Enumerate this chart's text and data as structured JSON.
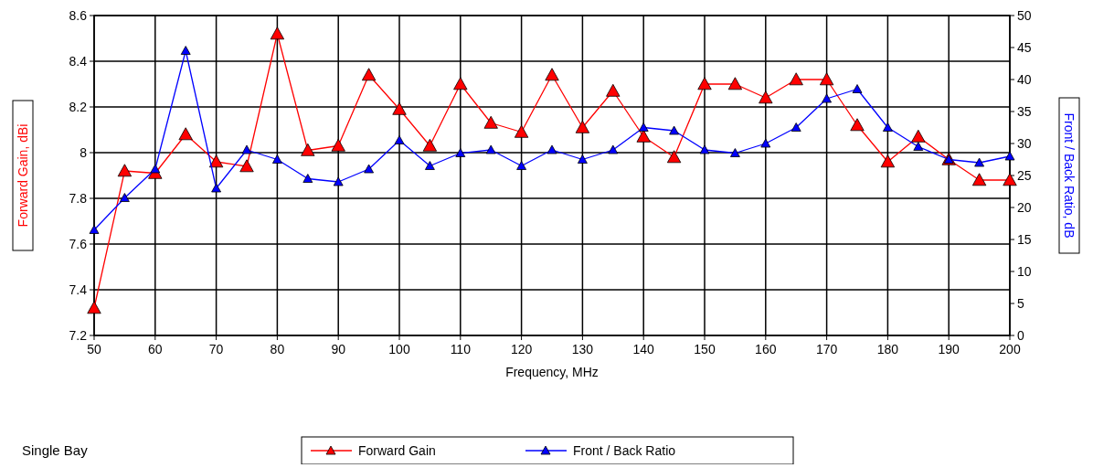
{
  "chart_data": {
    "type": "line",
    "xlabel": "Frequency, MHz",
    "ylabel": "Forward Gain, dBi",
    "y2label": "Front / Back Ratio, dB",
    "x": [
      50,
      55,
      60,
      65,
      70,
      75,
      80,
      85,
      90,
      95,
      100,
      105,
      110,
      115,
      120,
      125,
      130,
      135,
      140,
      145,
      150,
      155,
      160,
      165,
      170,
      175,
      180,
      185,
      190,
      195,
      200
    ],
    "series": [
      {
        "name": "Forward Gain",
        "color": "#ff0000",
        "values": [
          7.32,
          7.92,
          7.91,
          8.08,
          7.96,
          7.94,
          8.52,
          8.01,
          8.03,
          8.34,
          8.19,
          8.03,
          8.3,
          8.13,
          8.09,
          8.34,
          8.11,
          8.27,
          8.07,
          7.98,
          8.3,
          8.3,
          8.24,
          8.32,
          8.32,
          8.12,
          7.96,
          8.07,
          7.97,
          7.88,
          7.88
        ]
      },
      {
        "name": "Front / Back Ratio",
        "color": "#0000ff",
        "axis": "y2",
        "values": [
          16.5,
          21.5,
          26,
          44.5,
          23,
          29,
          27.5,
          24.5,
          24,
          26,
          30.5,
          26.5,
          28.5,
          29,
          26.5,
          29,
          27.5,
          29,
          32.5,
          32,
          29,
          28.5,
          30,
          32.5,
          37,
          38.5,
          32.5,
          29.5,
          27.5,
          27,
          28
        ]
      }
    ],
    "xlim": [
      50,
      200
    ],
    "xticks": [
      50,
      60,
      70,
      80,
      90,
      100,
      110,
      120,
      130,
      140,
      150,
      160,
      170,
      180,
      190,
      200
    ],
    "ylim": [
      7.2,
      8.6
    ],
    "yticks": [
      7.2,
      7.4,
      7.6,
      7.8,
      8,
      8.2,
      8.4,
      8.6
    ],
    "y2lim": [
      0,
      50
    ],
    "y2ticks": [
      0,
      5,
      10,
      15,
      20,
      25,
      30,
      35,
      40,
      45,
      50
    ],
    "grid": true,
    "marker": "triangle",
    "line_style": "solid",
    "legend": "bottom",
    "annotations": [
      "Single Bay"
    ]
  }
}
